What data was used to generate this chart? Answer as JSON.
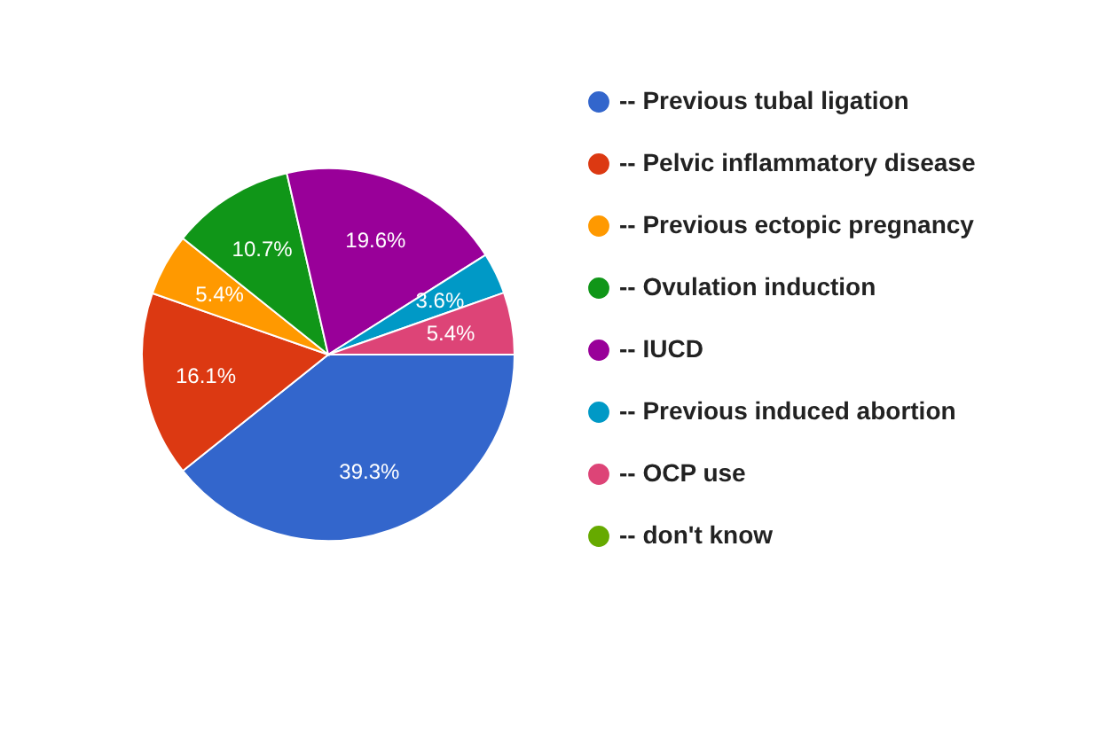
{
  "chart_data": {
    "type": "pie",
    "categories": [
      "-- Previous tubal ligation",
      "-- Pelvic inflammatory disease",
      "-- Previous ectopic pregnancy",
      "-- Ovulation induction",
      "-- IUCD",
      "-- Previous induced abortion",
      "-- OCP use",
      "-- don't know"
    ],
    "values": [
      39.3,
      16.1,
      5.4,
      10.7,
      19.6,
      3.6,
      5.4,
      0
    ],
    "colors": [
      "#3366cc",
      "#dc3912",
      "#ff9900",
      "#109618",
      "#990099",
      "#0099c6",
      "#dd4477",
      "#66aa00"
    ],
    "value_labels": [
      "39.3%",
      "16.1%",
      "5.4%",
      "10.7%",
      "19.6%",
      "3.6%",
      "5.4%",
      null
    ],
    "legend": "right"
  }
}
